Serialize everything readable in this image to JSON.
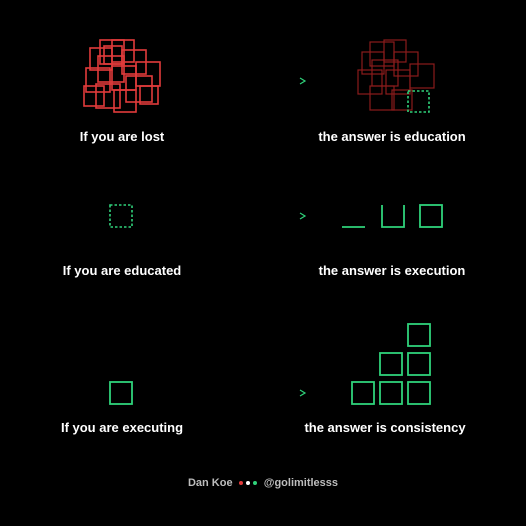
{
  "colors": {
    "background": "#000000",
    "red": "#e23b3b",
    "dark_red": "#8a1c1c",
    "green": "#2fd27a",
    "text": "#ffffff",
    "footer_text": "#bdbdbd",
    "dot_colors": [
      "#e23b3b",
      "#ffffff",
      "#2fd27a"
    ]
  },
  "rows": [
    {
      "left_label": "If you are lost",
      "right_label": "the answer is education"
    },
    {
      "left_label": "If you are educated",
      "right_label": "the answer is execution"
    },
    {
      "left_label": "If you are executing",
      "right_label": "the answer is consistency"
    }
  ],
  "footer": {
    "author": "Dan Koe",
    "handle": "@golimitlesss"
  },
  "icons": {
    "row1_left": "tangled-red-squares-icon",
    "row1_right": "faded-squares-with-dotted-green-square-icon",
    "row2_left": "dotted-green-square-icon",
    "row2_right": "square-building-steps-icon",
    "row3_left": "solid-green-square-icon",
    "row3_right": "stacked-green-squares-staircase-icon",
    "arrow": "red-to-green-arrow-icon"
  }
}
